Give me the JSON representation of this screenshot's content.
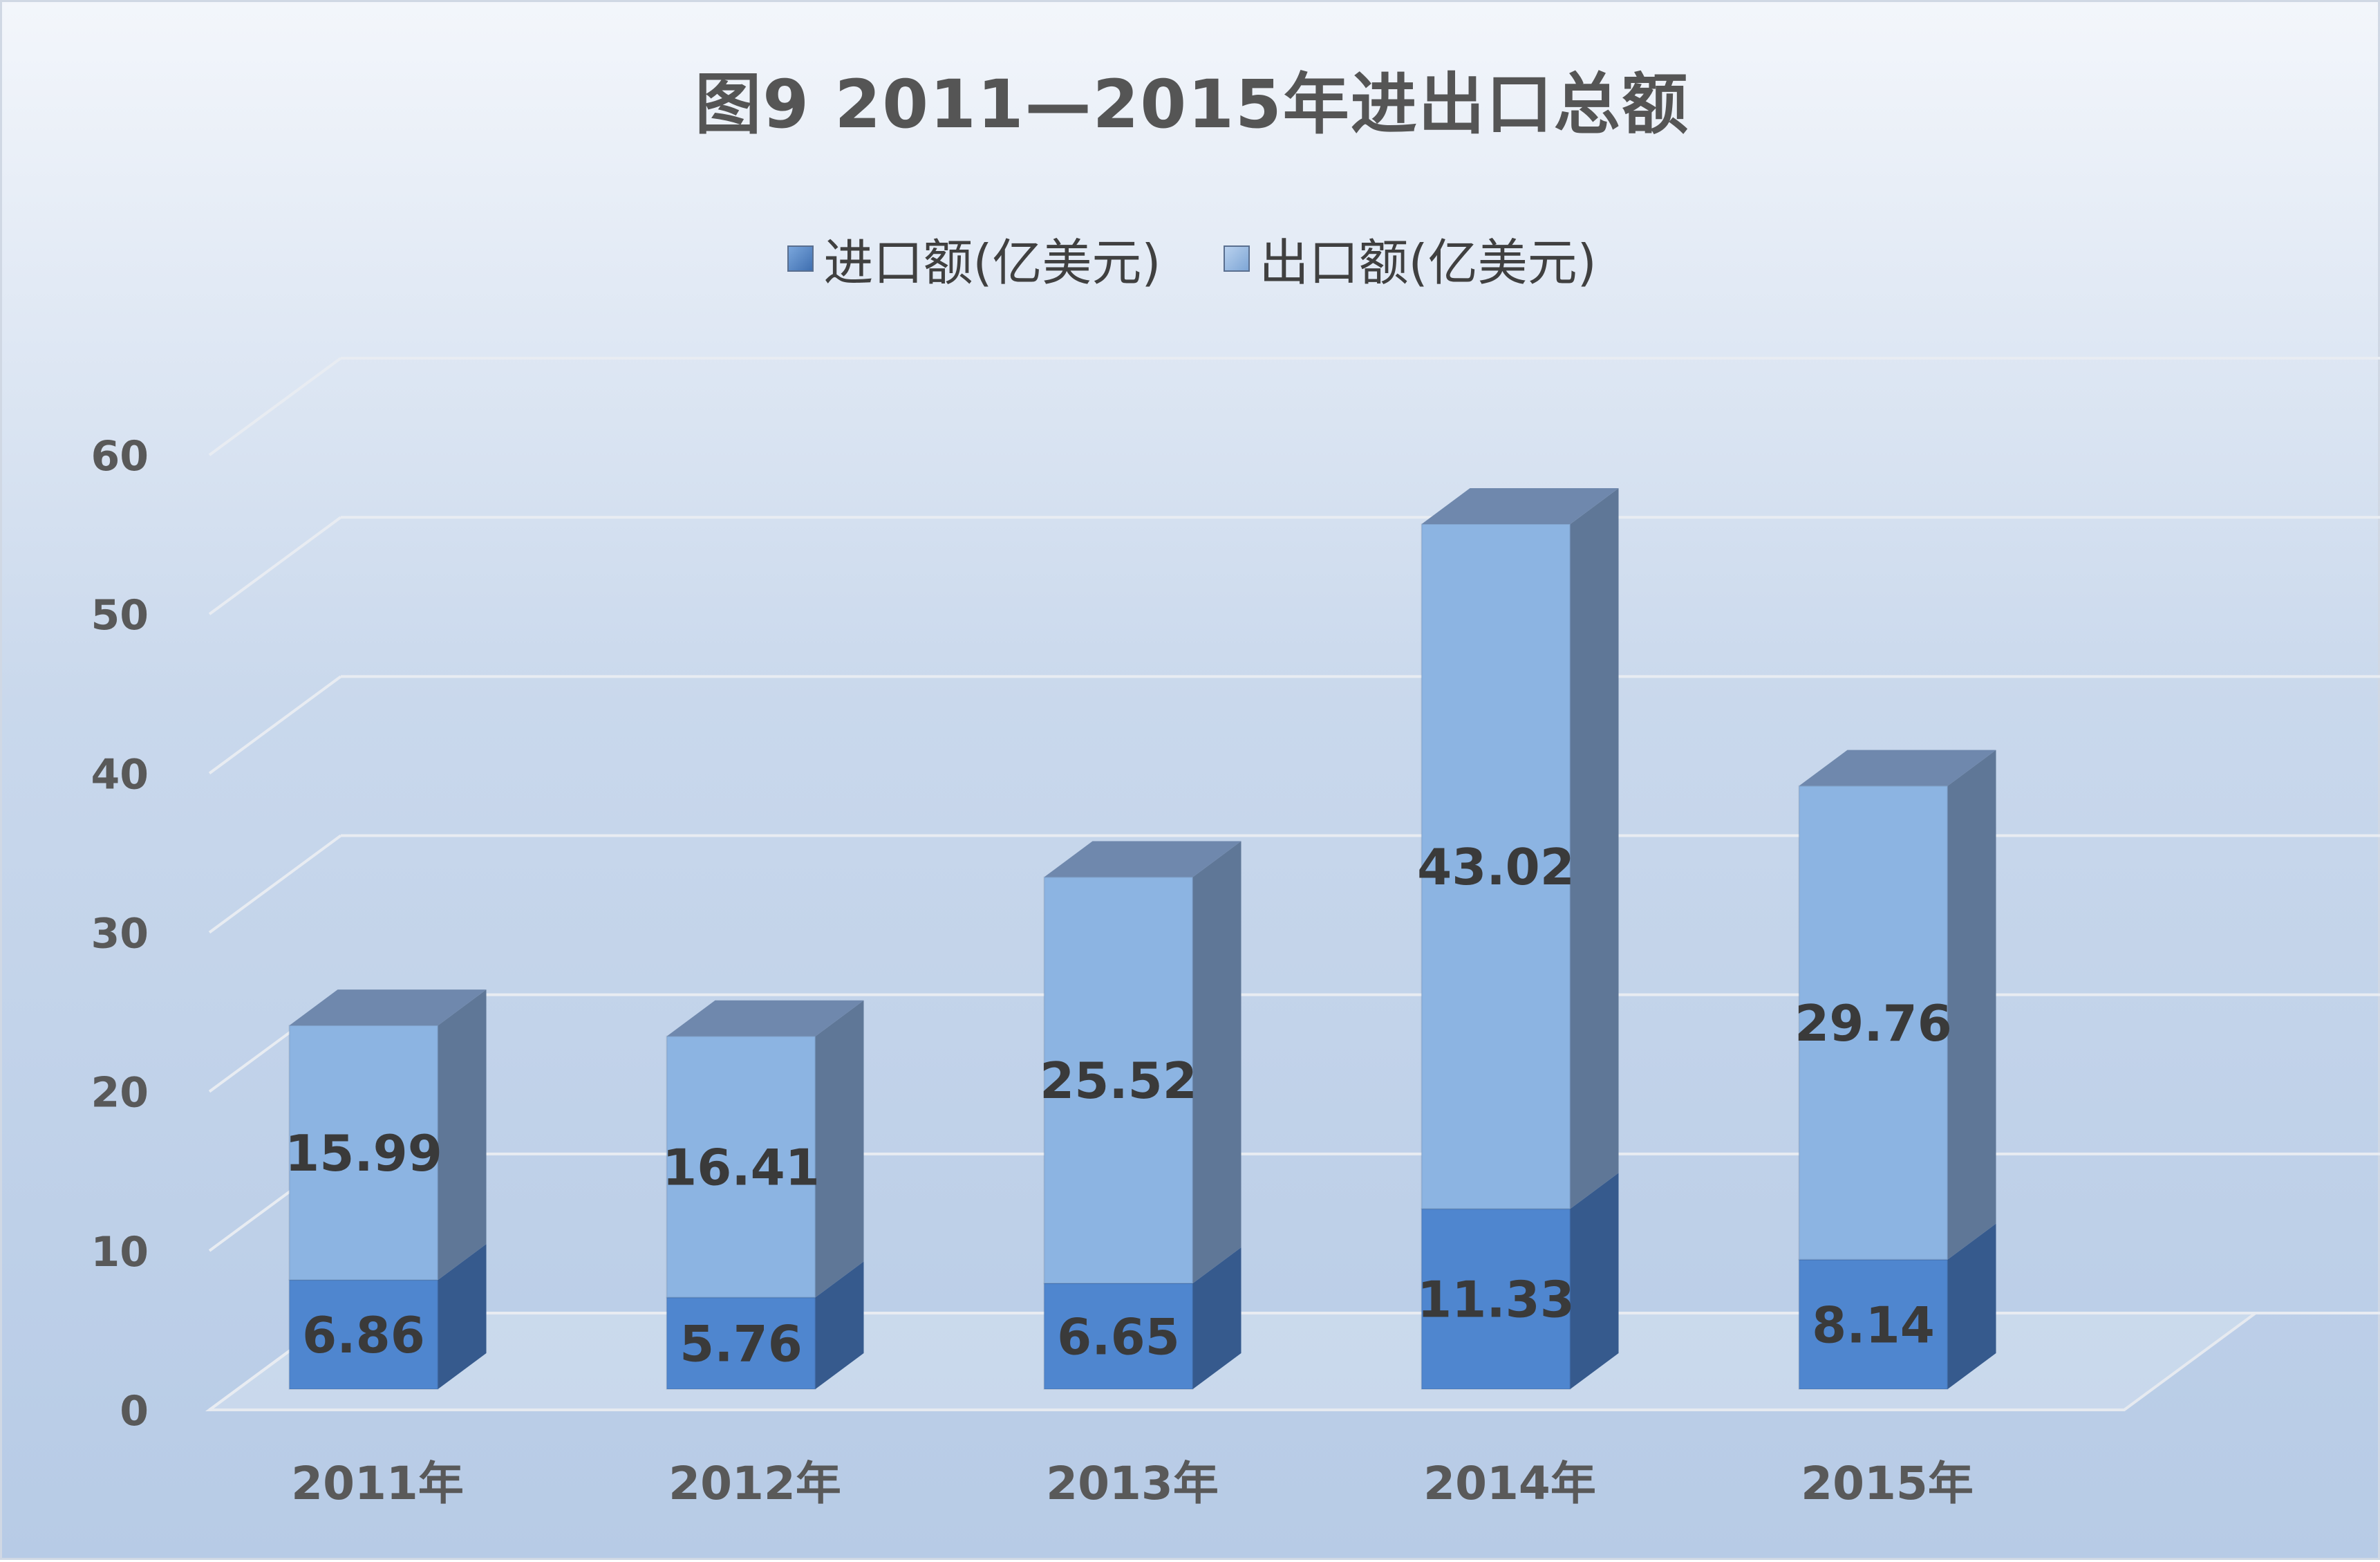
{
  "chart_data": {
    "type": "bar",
    "subtype": "stacked-3d",
    "title": "图9  2011—2015年进出口总额",
    "categories": [
      "2011年",
      "2012年",
      "2013年",
      "2014年",
      "2015年"
    ],
    "series": [
      {
        "name": "进口额(亿美元)",
        "values": [
          6.86,
          5.76,
          6.65,
          11.33,
          8.14
        ],
        "labels": [
          "6.86",
          "5.76",
          "6.65",
          "11.33",
          "8.14"
        ],
        "color": "#4f86cf",
        "side_color": "#365a8d"
      },
      {
        "name": "出口额(亿美元)",
        "values": [
          15.99,
          16.41,
          25.52,
          43.02,
          29.76
        ],
        "labels": [
          "15.99",
          "16.41",
          "25.52",
          "43.02",
          "29.76"
        ],
        "color": "#8cb4e2",
        "side_color": "#5f7797"
      }
    ],
    "ylim": [
      0,
      60
    ],
    "yticks": [
      "0",
      "10",
      "20",
      "30",
      "40",
      "50",
      "60"
    ],
    "grid": true,
    "legend_position": "top"
  }
}
